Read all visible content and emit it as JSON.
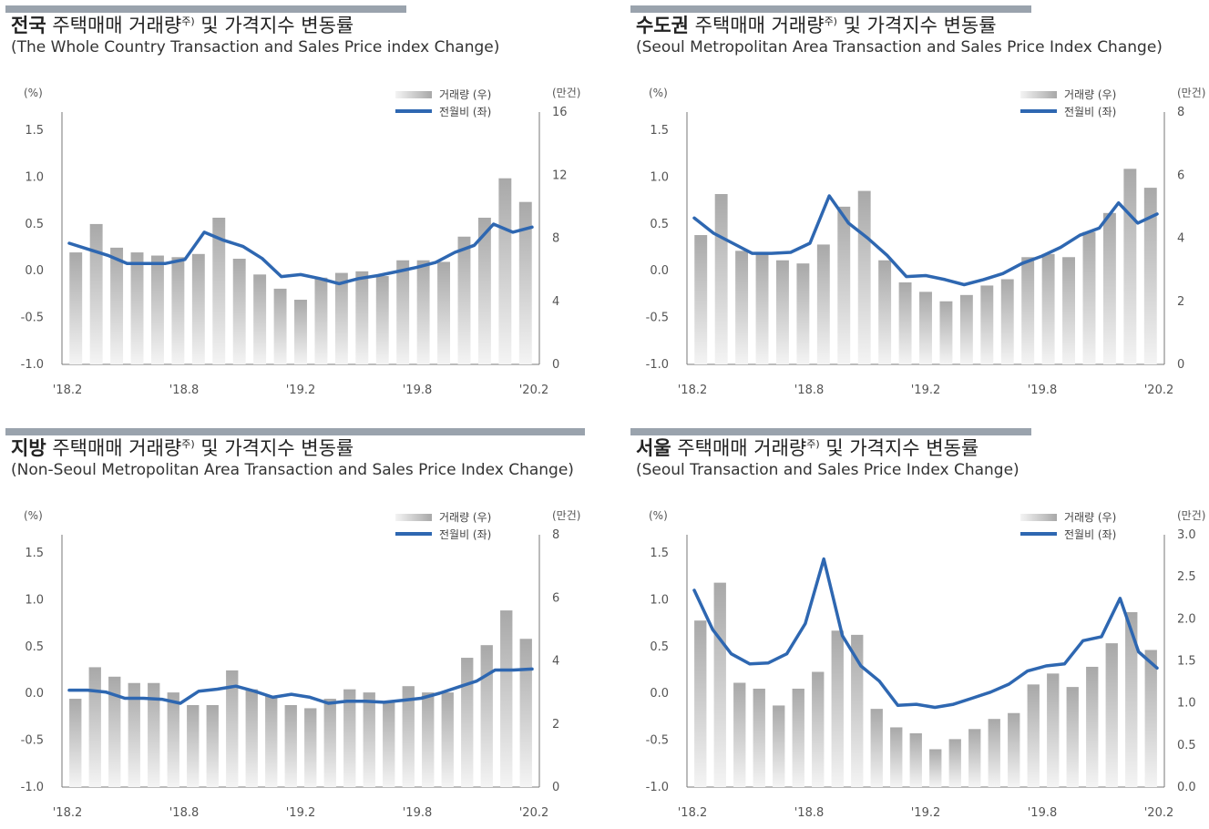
{
  "legend": {
    "volume_label": "거래량 (우)",
    "price_label": "전월비 (좌)"
  },
  "colors": {
    "line": "#2e67b1",
    "bar_top": "#a8a8a8",
    "bar_bottom": "#f4f4f4",
    "title_bar": "#9aa3ad",
    "axis": "#777777"
  },
  "chart_data": [
    {
      "type": "bar+line",
      "title_bold": "전국",
      "title_rest": " 주택매매 거래량",
      "title_sup": "주)",
      "title_tail": " 및 가격지수 변동률",
      "subtitle": "(The Whole Country Transaction and Sales Price index Change)",
      "left_unit": "(%)",
      "right_unit": "(만건)",
      "left_ticks": [
        "1.5",
        "1.0",
        "0.5",
        "0.0",
        "-0.5",
        "-1.0"
      ],
      "right_ticks": [
        "16",
        "12",
        "8",
        "4",
        "0"
      ],
      "x_ticks": [
        "'18.2",
        "'18.8",
        "'19.2",
        "'19.8",
        "'20.2"
      ],
      "ylim_left": [
        -1.0,
        1.5
      ],
      "ylim_right": [
        0,
        16
      ],
      "volume": [
        7.1,
        8.9,
        7.4,
        7.1,
        6.9,
        6.8,
        7.0,
        9.3,
        6.7,
        5.7,
        4.8,
        4.1,
        5.5,
        5.8,
        5.9,
        5.6,
        6.6,
        6.6,
        6.5,
        8.1,
        9.3,
        11.8,
        10.3
      ],
      "price": [
        0.2,
        0.14,
        0.08,
        0.0,
        0.0,
        0.0,
        0.04,
        0.31,
        0.23,
        0.17,
        0.05,
        -0.13,
        -0.11,
        -0.15,
        -0.2,
        -0.15,
        -0.12,
        -0.08,
        -0.04,
        0.01,
        0.11,
        0.18,
        0.39,
        0.31,
        0.36
      ]
    },
    {
      "type": "bar+line",
      "title_bold": "수도권",
      "title_rest": " 주택매매 거래량",
      "title_sup": "주)",
      "title_tail": " 및 가격지수 변동률",
      "subtitle": "(Seoul Metropolitan Area Transaction and Sales Price Index Change)",
      "left_unit": "(%)",
      "right_unit": "(만건)",
      "left_ticks": [
        "1.5",
        "1.0",
        "0.5",
        "0.0",
        "-0.5",
        "-1.0"
      ],
      "right_ticks": [
        "8",
        "6",
        "4",
        "2",
        "0"
      ],
      "x_ticks": [
        "'18.2",
        "'18.8",
        "'19.2",
        "'19.8",
        "'20.2"
      ],
      "ylim_left": [
        -1.0,
        1.5
      ],
      "ylim_right": [
        0,
        8
      ],
      "volume": [
        4.1,
        5.4,
        3.6,
        3.5,
        3.3,
        3.2,
        3.8,
        5.0,
        5.5,
        3.3,
        2.6,
        2.3,
        2.0,
        2.2,
        2.5,
        2.7,
        3.4,
        3.5,
        3.4,
        4.2,
        4.8,
        6.2,
        5.6
      ],
      "price": [
        0.45,
        0.3,
        0.2,
        0.1,
        0.1,
        0.11,
        0.2,
        0.67,
        0.4,
        0.25,
        0.08,
        -0.13,
        -0.12,
        -0.16,
        -0.21,
        -0.16,
        -0.1,
        0.0,
        0.07,
        0.16,
        0.28,
        0.35,
        0.6,
        0.4,
        0.49
      ]
    },
    {
      "type": "bar+line",
      "title_bold": "지방",
      "title_rest": " 주택매매 거래량",
      "title_sup": "주)",
      "title_tail": " 및 가격지수 변동률",
      "subtitle": "(Non-Seoul Metropolitan Area Transaction and Sales Price Index Change)",
      "left_unit": "(%)",
      "right_unit": "(만건)",
      "left_ticks": [
        "1.5",
        "1.0",
        "0.5",
        "0.0",
        "-0.5",
        "-1.0"
      ],
      "right_ticks": [
        "8",
        "6",
        "4",
        "2",
        "0"
      ],
      "x_ticks": [
        "'18.2",
        "'18.8",
        "'19.2",
        "'19.8",
        "'20.2"
      ],
      "ylim_left": [
        -1.0,
        1.5
      ],
      "ylim_right": [
        0,
        8
      ],
      "volume": [
        2.8,
        3.8,
        3.5,
        3.3,
        3.3,
        3.0,
        2.6,
        2.6,
        3.7,
        3.1,
        2.9,
        2.6,
        2.5,
        2.8,
        3.1,
        3.0,
        2.7,
        3.2,
        3.0,
        3.0,
        4.1,
        4.5,
        5.6,
        4.7
      ],
      "price": [
        -0.04,
        -0.04,
        -0.06,
        -0.12,
        -0.12,
        -0.13,
        -0.17,
        -0.05,
        -0.03,
        0.0,
        -0.05,
        -0.11,
        -0.08,
        -0.11,
        -0.17,
        -0.15,
        -0.15,
        -0.16,
        -0.14,
        -0.12,
        -0.07,
        -0.01,
        0.05,
        0.16,
        0.16,
        0.17
      ]
    },
    {
      "type": "bar+line",
      "title_bold": "서울",
      "title_rest": " 주택매매 거래량",
      "title_sup": "주)",
      "title_tail": " 및 가격지수 변동률",
      "subtitle": "(Seoul Transaction and Sales Price Index Change)",
      "left_unit": "(%)",
      "right_unit": "(만건)",
      "left_ticks": [
        "1.5",
        "1.0",
        "0.5",
        "0.0",
        "-0.5",
        "-1.0"
      ],
      "right_ticks": [
        "3.0",
        "2.5",
        "2.0",
        "1.5",
        "1.0",
        "0.5",
        "0.0"
      ],
      "x_ticks": [
        "'18.2",
        "'18.8",
        "'19.2",
        "'19.8",
        "'20.2"
      ],
      "ylim_left": [
        -1.0,
        1.5
      ],
      "ylim_right": [
        0,
        3.0
      ],
      "volume": [
        1.98,
        2.43,
        1.24,
        1.17,
        0.97,
        1.17,
        1.37,
        1.86,
        1.81,
        0.93,
        0.71,
        0.64,
        0.45,
        0.57,
        0.69,
        0.81,
        0.88,
        1.22,
        1.35,
        1.19,
        1.43,
        1.71,
        2.08,
        1.63
      ],
      "price": [
        0.95,
        0.56,
        0.32,
        0.22,
        0.23,
        0.32,
        0.62,
        1.26,
        0.5,
        0.2,
        0.05,
        -0.19,
        -0.18,
        -0.21,
        -0.18,
        -0.12,
        -0.06,
        0.02,
        0.15,
        0.2,
        0.22,
        0.45,
        0.49,
        0.87,
        0.34,
        0.18
      ]
    }
  ]
}
